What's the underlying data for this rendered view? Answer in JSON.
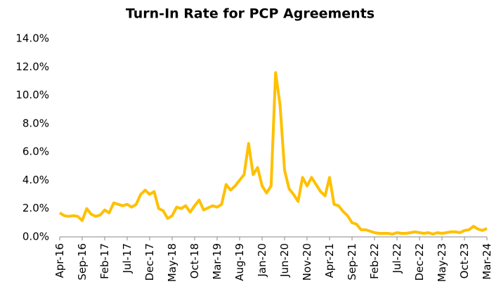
{
  "chart_data": {
    "type": "line",
    "title": "Turn-In Rate for PCP Agreements",
    "categories": [
      "Apr-16",
      null,
      null,
      null,
      null,
      "Sep-16",
      null,
      null,
      null,
      null,
      "Feb-17",
      null,
      null,
      null,
      null,
      "Jul-17",
      null,
      null,
      null,
      null,
      "Dec-17",
      null,
      null,
      null,
      null,
      "May-18",
      null,
      null,
      null,
      null,
      "Oct-18",
      null,
      null,
      null,
      null,
      "Mar-19",
      null,
      null,
      null,
      null,
      "Aug-19",
      null,
      null,
      null,
      null,
      "Jan-20",
      null,
      null,
      null,
      null,
      "Jun-20",
      null,
      null,
      null,
      null,
      "Nov-20",
      null,
      null,
      null,
      null,
      "Apr-21",
      null,
      null,
      null,
      null,
      "Sep-21",
      null,
      null,
      null,
      null,
      "Feb-22",
      null,
      null,
      null,
      null,
      "Jul-22",
      null,
      null,
      null,
      null,
      "Dec-22",
      null,
      null,
      null,
      null,
      "May-23",
      null,
      null,
      null,
      null,
      "Oct-23",
      null,
      null,
      null,
      null,
      "Mar-24"
    ],
    "values": [
      1.7,
      1.5,
      1.45,
      1.5,
      1.45,
      1.15,
      2.0,
      1.6,
      1.45,
      1.55,
      1.9,
      1.7,
      2.4,
      2.3,
      2.2,
      2.3,
      2.1,
      2.3,
      3.0,
      3.3,
      3.0,
      3.2,
      2.0,
      1.85,
      1.3,
      1.5,
      2.1,
      2.0,
      2.2,
      1.75,
      2.2,
      2.6,
      1.9,
      2.05,
      2.2,
      2.1,
      2.3,
      3.7,
      3.3,
      3.6,
      4.0,
      4.4,
      6.6,
      4.4,
      4.9,
      3.6,
      3.1,
      3.6,
      11.6,
      9.3,
      4.7,
      3.4,
      3.0,
      2.5,
      4.2,
      3.6,
      4.2,
      3.7,
      3.2,
      2.9,
      4.2,
      2.3,
      2.2,
      1.8,
      1.5,
      1.0,
      0.9,
      0.5,
      0.5,
      0.4,
      0.3,
      0.25,
      0.25,
      0.25,
      0.2,
      0.3,
      0.25,
      0.25,
      0.3,
      0.35,
      0.3,
      0.25,
      0.3,
      0.2,
      0.3,
      0.25,
      0.3,
      0.35,
      0.35,
      0.3,
      0.45,
      0.5,
      0.75,
      0.55,
      0.45,
      0.6
    ],
    "color": "#ffc000",
    "ylim": [
      0,
      14
    ],
    "yticks": [
      {
        "value": 0,
        "label": "0.0%"
      },
      {
        "value": 2,
        "label": "2.0%"
      },
      {
        "value": 4,
        "label": "4.0%"
      },
      {
        "value": 6,
        "label": "6.0%"
      },
      {
        "value": 8,
        "label": "8.0%"
      },
      {
        "value": 10,
        "label": "10.0%"
      },
      {
        "value": 12,
        "label": "12.0%"
      },
      {
        "value": 14,
        "label": "14.0%"
      }
    ]
  }
}
